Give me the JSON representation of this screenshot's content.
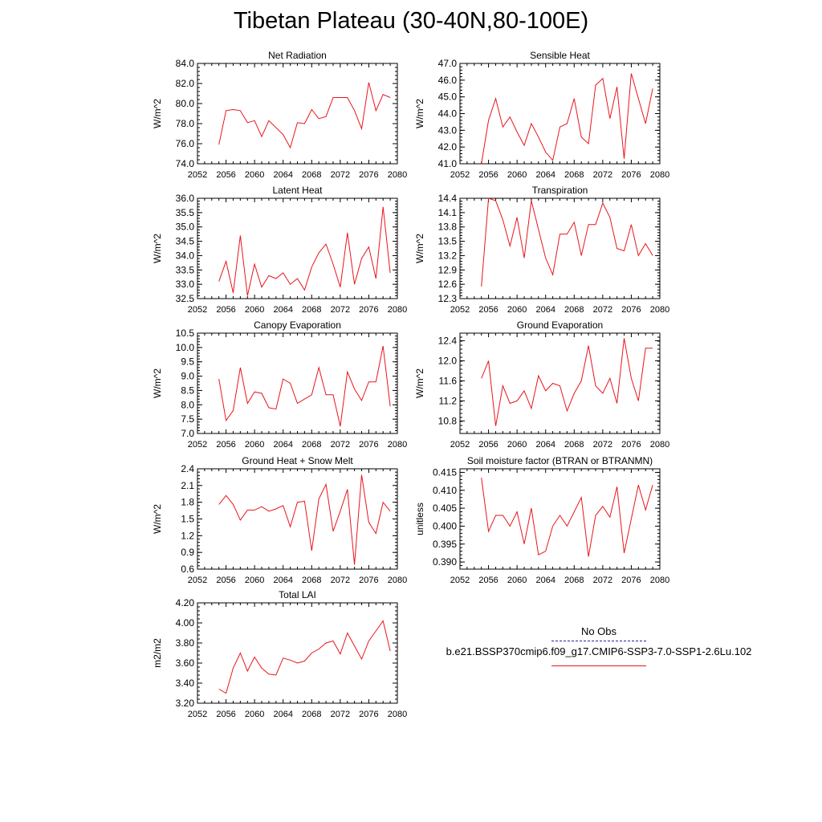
{
  "title": "Tibetan Plateau (30-40N,80-100E)",
  "legend": {
    "obs_label": "No Obs",
    "case_label": "b.e21.BSSP370cmip6.f09_g17.CMIP6-SSP3-7.0-SSP1-2.6Lu.102",
    "obs_color": "#2222aa",
    "case_color": "#e8151b"
  },
  "chart_data": [
    {
      "type": "line",
      "title": "Net Radiation",
      "ylabel": "W/m^2",
      "xlim": [
        2052,
        2080
      ],
      "ylim": [
        74.0,
        84.0
      ],
      "xticks": [
        "2052",
        "2056",
        "2060",
        "2064",
        "2068",
        "2072",
        "2076",
        "2080"
      ],
      "yticks": [
        "74.0",
        "76.0",
        "78.0",
        "80.0",
        "82.0",
        "84.0"
      ],
      "x": [
        2055,
        2056,
        2057,
        2058,
        2059,
        2060,
        2061,
        2062,
        2063,
        2064,
        2065,
        2066,
        2067,
        2068,
        2069,
        2070,
        2071,
        2072,
        2073,
        2074,
        2075,
        2076,
        2077,
        2078,
        2079
      ],
      "values": [
        75.9,
        79.3,
        79.4,
        79.3,
        78.1,
        78.3,
        76.7,
        78.3,
        77.6,
        76.9,
        75.6,
        78.1,
        78.0,
        79.4,
        78.5,
        78.7,
        80.6,
        80.6,
        80.6,
        79.3,
        77.5,
        82.1,
        79.3,
        80.9,
        80.6
      ]
    },
    {
      "type": "line",
      "title": "Sensible Heat",
      "ylabel": "W/m^2",
      "xlim": [
        2052,
        2080
      ],
      "ylim": [
        41.0,
        47.0
      ],
      "xticks": [
        "2052",
        "2056",
        "2060",
        "2064",
        "2068",
        "2072",
        "2076",
        "2080"
      ],
      "yticks": [
        "41.0",
        "42.0",
        "43.0",
        "44.0",
        "45.0",
        "46.0",
        "47.0"
      ],
      "x": [
        2055,
        2056,
        2057,
        2058,
        2059,
        2060,
        2061,
        2062,
        2063,
        2064,
        2065,
        2066,
        2067,
        2068,
        2069,
        2070,
        2071,
        2072,
        2073,
        2074,
        2075,
        2076,
        2077,
        2078,
        2079
      ],
      "values": [
        41.0,
        43.6,
        44.9,
        43.2,
        43.8,
        42.9,
        42.1,
        43.4,
        42.6,
        41.7,
        41.2,
        43.2,
        43.4,
        44.9,
        42.6,
        42.2,
        45.7,
        46.1,
        43.7,
        45.6,
        41.3,
        46.4,
        44.9,
        43.4,
        45.5
      ]
    },
    {
      "type": "line",
      "title": "Latent Heat",
      "ylabel": "W/m^2",
      "xlim": [
        2052,
        2080
      ],
      "ylim": [
        32.5,
        36.0
      ],
      "xticks": [
        "2052",
        "2056",
        "2060",
        "2064",
        "2068",
        "2072",
        "2076",
        "2080"
      ],
      "yticks": [
        "32.5",
        "33.0",
        "33.5",
        "34.0",
        "34.5",
        "35.0",
        "35.5",
        "36.0"
      ],
      "x": [
        2055,
        2056,
        2057,
        2058,
        2059,
        2060,
        2061,
        2062,
        2063,
        2064,
        2065,
        2066,
        2067,
        2068,
        2069,
        2070,
        2071,
        2072,
        2073,
        2074,
        2075,
        2076,
        2077,
        2078,
        2079
      ],
      "values": [
        33.1,
        33.8,
        32.7,
        34.7,
        32.6,
        33.7,
        32.9,
        33.3,
        33.2,
        33.4,
        33.0,
        33.2,
        32.8,
        33.6,
        34.1,
        34.4,
        33.7,
        32.9,
        34.8,
        33.0,
        33.9,
        34.3,
        33.2,
        35.7,
        33.4
      ]
    },
    {
      "type": "line",
      "title": "Transpiration",
      "ylabel": "W/m^2",
      "xlim": [
        2052,
        2080
      ],
      "ylim": [
        12.3,
        14.4
      ],
      "xticks": [
        "2052",
        "2056",
        "2060",
        "2064",
        "2068",
        "2072",
        "2076",
        "2080"
      ],
      "yticks": [
        "12.3",
        "12.6",
        "12.9",
        "13.2",
        "13.5",
        "13.8",
        "14.1",
        "14.4"
      ],
      "x": [
        2055,
        2056,
        2057,
        2058,
        2059,
        2060,
        2061,
        2062,
        2063,
        2064,
        2065,
        2066,
        2067,
        2068,
        2069,
        2070,
        2071,
        2072,
        2073,
        2074,
        2075,
        2076,
        2077,
        2078,
        2079
      ],
      "values": [
        12.55,
        14.4,
        14.35,
        13.95,
        13.4,
        14.0,
        13.15,
        14.35,
        13.75,
        13.15,
        12.8,
        13.65,
        13.65,
        13.9,
        13.2,
        13.85,
        13.85,
        14.3,
        14.0,
        13.35,
        13.3,
        13.85,
        13.2,
        13.45,
        13.2
      ]
    },
    {
      "type": "line",
      "title": "Canopy Evaporation",
      "ylabel": "W/m^2",
      "xlim": [
        2052,
        2080
      ],
      "ylim": [
        7.0,
        10.5
      ],
      "xticks": [
        "2052",
        "2056",
        "2060",
        "2064",
        "2068",
        "2072",
        "2076",
        "2080"
      ],
      "yticks": [
        "7.0",
        "7.5",
        "8.0",
        "8.5",
        "9.0",
        "9.5",
        "10.0",
        "10.5"
      ],
      "x": [
        2055,
        2056,
        2057,
        2058,
        2059,
        2060,
        2061,
        2062,
        2063,
        2064,
        2065,
        2066,
        2067,
        2068,
        2069,
        2070,
        2071,
        2072,
        2073,
        2074,
        2075,
        2076,
        2077,
        2078,
        2079
      ],
      "values": [
        8.9,
        7.45,
        7.8,
        9.3,
        8.05,
        8.45,
        8.4,
        7.9,
        7.85,
        8.9,
        8.75,
        8.05,
        8.2,
        8.35,
        9.3,
        8.35,
        8.35,
        7.25,
        9.15,
        8.55,
        8.15,
        8.8,
        8.8,
        10.05,
        7.95
      ]
    },
    {
      "type": "line",
      "title": "Ground Evaporation",
      "ylabel": "W/m^2",
      "xlim": [
        2052,
        2080
      ],
      "ylim": [
        10.55,
        12.55
      ],
      "xticks": [
        "2052",
        "2056",
        "2060",
        "2064",
        "2068",
        "2072",
        "2076",
        "2080"
      ],
      "yticks": [
        "10.8",
        "11.2",
        "11.6",
        "12.0",
        "12.4"
      ],
      "x": [
        2055,
        2056,
        2057,
        2058,
        2059,
        2060,
        2061,
        2062,
        2063,
        2064,
        2065,
        2066,
        2067,
        2068,
        2069,
        2070,
        2071,
        2072,
        2073,
        2074,
        2075,
        2076,
        2077,
        2078,
        2079
      ],
      "values": [
        11.65,
        12.0,
        10.7,
        11.5,
        11.15,
        11.2,
        11.4,
        11.05,
        11.7,
        11.4,
        11.55,
        11.5,
        11.0,
        11.35,
        11.6,
        12.3,
        11.5,
        11.35,
        11.65,
        11.15,
        12.45,
        11.65,
        11.2,
        12.25,
        12.25
      ]
    },
    {
      "type": "line",
      "title": "Ground Heat + Snow Melt",
      "ylabel": "W/m^2",
      "xlim": [
        2052,
        2080
      ],
      "ylim": [
        0.6,
        2.4
      ],
      "xticks": [
        "2052",
        "2056",
        "2060",
        "2064",
        "2068",
        "2072",
        "2076",
        "2080"
      ],
      "yticks": [
        "0.6",
        "0.9",
        "1.2",
        "1.5",
        "1.8",
        "2.1",
        "2.4"
      ],
      "x": [
        2055,
        2056,
        2057,
        2058,
        2059,
        2060,
        2061,
        2062,
        2063,
        2064,
        2065,
        2066,
        2067,
        2068,
        2069,
        2070,
        2071,
        2072,
        2073,
        2074,
        2075,
        2076,
        2077,
        2078,
        2079
      ],
      "values": [
        1.76,
        1.92,
        1.76,
        1.48,
        1.66,
        1.66,
        1.72,
        1.64,
        1.68,
        1.74,
        1.36,
        1.8,
        1.82,
        0.93,
        1.86,
        2.12,
        1.28,
        1.64,
        2.03,
        0.68,
        2.29,
        1.44,
        1.24,
        1.8,
        1.64
      ]
    },
    {
      "type": "line",
      "title": "Soil moisture factor (BTRAN or BTRANMN)",
      "ylabel": "unitless",
      "xlim": [
        2052,
        2080
      ],
      "ylim": [
        0.388,
        0.416
      ],
      "xticks": [
        "2052",
        "2056",
        "2060",
        "2064",
        "2068",
        "2072",
        "2076",
        "2080"
      ],
      "yticks": [
        "0.390",
        "0.395",
        "0.400",
        "0.405",
        "0.410",
        "0.415"
      ],
      "x": [
        2055,
        2056,
        2057,
        2058,
        2059,
        2060,
        2061,
        2062,
        2063,
        2064,
        2065,
        2066,
        2067,
        2068,
        2069,
        2070,
        2071,
        2072,
        2073,
        2074,
        2075,
        2076,
        2077,
        2078,
        2079
      ],
      "values": [
        0.4135,
        0.3985,
        0.403,
        0.403,
        0.4,
        0.404,
        0.395,
        0.405,
        0.392,
        0.393,
        0.4,
        0.403,
        0.4,
        0.404,
        0.408,
        0.3915,
        0.403,
        0.4055,
        0.4025,
        0.411,
        0.3925,
        0.402,
        0.4115,
        0.4045,
        0.4115
      ]
    },
    {
      "type": "line",
      "title": "Total LAI",
      "ylabel": "m2/m2",
      "xlim": [
        2052,
        2080
      ],
      "ylim": [
        3.2,
        4.2
      ],
      "xticks": [
        "2052",
        "2056",
        "2060",
        "2064",
        "2068",
        "2072",
        "2076",
        "2080"
      ],
      "yticks": [
        "3.20",
        "3.40",
        "3.60",
        "3.80",
        "4.00",
        "4.20"
      ],
      "x": [
        2055,
        2056,
        2057,
        2058,
        2059,
        2060,
        2061,
        2062,
        2063,
        2064,
        2065,
        2066,
        2067,
        2068,
        2069,
        2070,
        2071,
        2072,
        2073,
        2074,
        2075,
        2076,
        2077,
        2078,
        2079
      ],
      "values": [
        3.34,
        3.3,
        3.55,
        3.7,
        3.52,
        3.66,
        3.55,
        3.49,
        3.48,
        3.65,
        3.63,
        3.6,
        3.62,
        3.7,
        3.74,
        3.8,
        3.82,
        3.69,
        3.9,
        3.77,
        3.64,
        3.82,
        3.92,
        4.02,
        3.72
      ]
    }
  ]
}
